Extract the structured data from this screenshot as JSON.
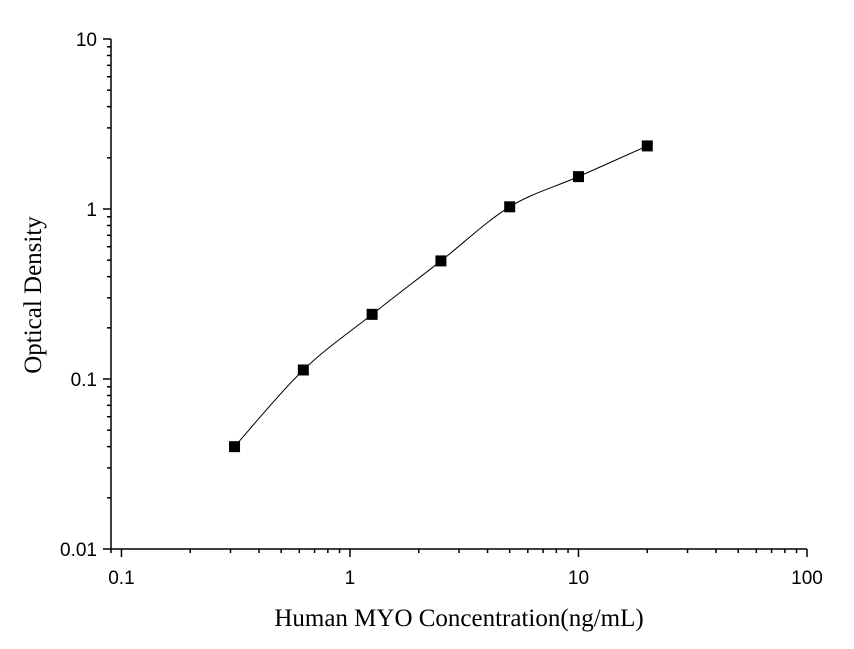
{
  "chart_data": {
    "type": "scatter",
    "xlabel": "Human MYO  Concentration(ng/mL)",
    "ylabel": "Optical Density",
    "x_scale": "log",
    "y_scale": "log",
    "xlim": [
      0.09,
      100
    ],
    "ylim": [
      0.01,
      10
    ],
    "x_ticks": [
      0.1,
      1,
      10,
      100
    ],
    "x_tick_labels": [
      "0.1",
      "1",
      "10",
      "100"
    ],
    "y_ticks": [
      0.01,
      0.1,
      1,
      10
    ],
    "y_tick_labels": [
      "0.01",
      "0.1",
      "1",
      "10"
    ],
    "grid": false,
    "marker": "square",
    "line": "smooth-fit",
    "x": [
      0.3125,
      0.625,
      1.25,
      2.5,
      5,
      10,
      20
    ],
    "y": [
      0.04,
      0.113,
      0.24,
      0.495,
      1.03,
      1.55,
      2.35
    ]
  }
}
